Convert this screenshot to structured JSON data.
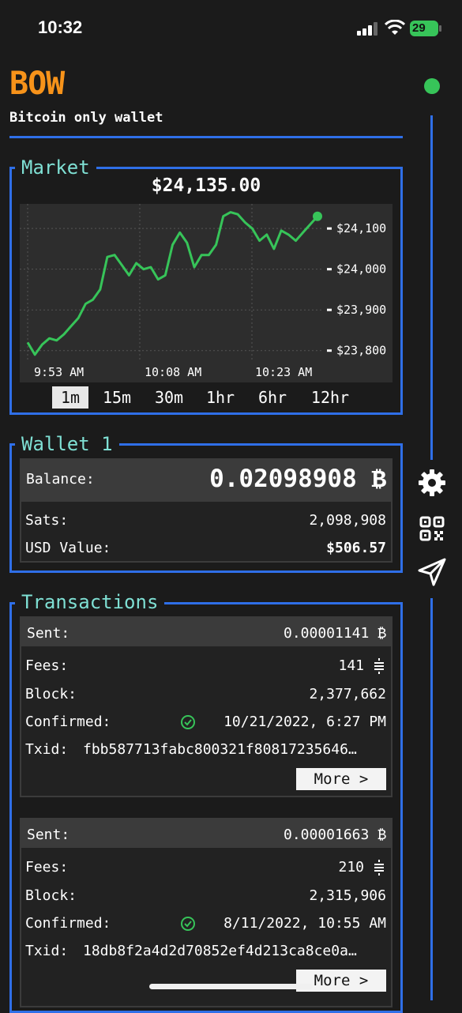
{
  "status_bar": {
    "time": "10:32",
    "battery": "29"
  },
  "app": {
    "logo": "BOW",
    "subtitle": "Bitcoin only wallet"
  },
  "market": {
    "title": "Market",
    "price": "$24,135.00",
    "timeframes": [
      "1m",
      "15m",
      "30m",
      "1hr",
      "6hr",
      "12hr"
    ],
    "active_timeframe": "1m"
  },
  "chart_data": {
    "type": "line",
    "title": "",
    "x_ticks": [
      "9:53 AM",
      "10:08 AM",
      "10:23 AM"
    ],
    "y_ticks": [
      "$24,100",
      "$24,000",
      "$23,900",
      "$23,800"
    ],
    "ylim": [
      23780,
      24145
    ],
    "color": "#37c459",
    "series": [
      {
        "values": [
          23820,
          23790,
          23815,
          23830,
          23825,
          23840,
          23860,
          23880,
          23915,
          23925,
          23950,
          24030,
          24035,
          24010,
          23985,
          24015,
          24000,
          24005,
          23975,
          23985,
          24060,
          24090,
          24065,
          24005,
          24035,
          24035,
          24060,
          24130,
          24140,
          24135,
          24115,
          24100,
          24070,
          24085,
          24050,
          24095,
          24085,
          24070,
          24090,
          24110,
          24130
        ]
      }
    ]
  },
  "wallet": {
    "title": "Wallet 1",
    "balance_label": "Balance:",
    "balance_value": "0.02098908 ₿",
    "sats_label": "Sats:",
    "sats_value": "2,098,908",
    "usd_label": "USD Value:",
    "usd_value": "$506.57"
  },
  "transactions": {
    "title": "Transactions",
    "items": [
      {
        "type_label": "Sent:",
        "amount": "0.00001141 ₿",
        "fees_label": "Fees:",
        "fees": "141",
        "block_label": "Block:",
        "block": "2,377,662",
        "confirmed_label": "Confirmed:",
        "confirmed": "10/21/2022, 6:27 PM",
        "txid_label": "Txid:",
        "txid": "fbb587713fabc800321f80817235646…",
        "more": "More >"
      },
      {
        "type_label": "Sent:",
        "amount": "0.00001663 ₿",
        "fees_label": "Fees:",
        "fees": "210",
        "block_label": "Block:",
        "block": "2,315,906",
        "confirmed_label": "Confirmed:",
        "confirmed": "8/11/2022, 10:55 AM",
        "txid_label": "Txid:",
        "txid": "18db8f2a4d2d70852ef4d213ca8ce0a…",
        "more": "More >"
      }
    ]
  },
  "side_icons": [
    "gear-icon",
    "qr-code-icon",
    "send-icon"
  ],
  "colors": {
    "accent": "#2f6fe8",
    "logo": "#f7931a",
    "section_title": "#7fe0d4",
    "positive": "#37c459"
  }
}
